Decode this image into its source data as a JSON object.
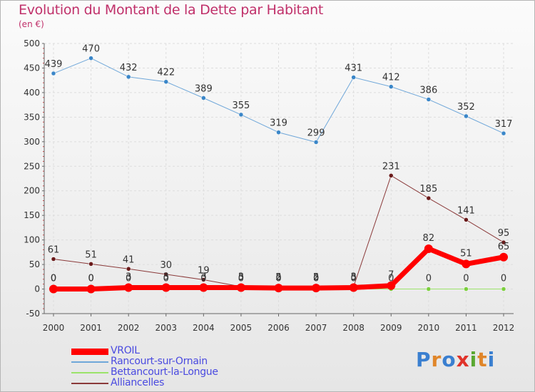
{
  "title": "Evolution du Montant de la Dette par Habitant",
  "unit_label": "(en €)",
  "logo": {
    "text": "Proxiti",
    "colors": [
      "#3a7fd0",
      "#e0862a",
      "#3a7fd0",
      "#e0332a",
      "#5aa832",
      "#e0862a",
      "#3a7fd0"
    ]
  },
  "chart_data": {
    "type": "line",
    "x": [
      "2000",
      "2001",
      "2002",
      "2003",
      "2004",
      "2005",
      "2006",
      "2007",
      "2008",
      "2009",
      "2010",
      "2011",
      "2012"
    ],
    "ylim": [
      -50,
      500
    ],
    "yticks": [
      "-50",
      "0",
      "50",
      "100",
      "150",
      "200",
      "250",
      "300",
      "350",
      "400",
      "450",
      "500"
    ],
    "grid": true,
    "legend_position": "bottom-left",
    "series": [
      {
        "name": "Rancourt-sur-Ornain",
        "color": "#6fa7d9",
        "marker": "#3a86c8",
        "line_width": 1,
        "values": [
          439,
          470,
          432,
          422,
          389,
          355,
          319,
          299,
          431,
          412,
          386,
          352,
          317
        ],
        "labels": [
          "439",
          "470",
          "432",
          "422",
          "389",
          "355",
          "319",
          "299",
          "431",
          "412",
          "386",
          "352",
          "317"
        ]
      },
      {
        "name": "Alliancelles",
        "color": "#8b3a3a",
        "marker": "#6a1a1a",
        "line_width": 1,
        "values": [
          61,
          51,
          41,
          30,
          19,
          5,
          5,
          5,
          5,
          231,
          185,
          141,
          95
        ],
        "labels": [
          "61",
          "51",
          "41",
          "30",
          "19",
          "5",
          "5",
          "5",
          "5",
          "231",
          "185",
          "141",
          "95"
        ]
      },
      {
        "name": "Bettancourt-la-Longue",
        "color": "#9be36a",
        "marker": "#7bcf3c",
        "line_width": 1,
        "values": [
          0,
          0,
          0,
          0,
          0,
          0,
          0,
          0,
          0,
          0,
          0,
          0,
          0
        ],
        "labels": [
          "0",
          "0",
          "0",
          "0",
          "0",
          "0",
          "0",
          "0",
          "0",
          "0",
          "0",
          "0",
          "0"
        ]
      },
      {
        "name": "VROIL",
        "color": "#ff0000",
        "marker": "#ff0000",
        "line_width": 7,
        "values": [
          0,
          0,
          3,
          3,
          3,
          3,
          2,
          2,
          3,
          7,
          82,
          51,
          65
        ],
        "labels": [
          "0",
          "0",
          "3",
          "3",
          "3",
          "3",
          "2",
          "2",
          "3",
          "7",
          "82",
          "51",
          "65"
        ]
      }
    ],
    "legend": [
      "VROIL",
      "Rancourt-sur-Ornain",
      "Bettancourt-la-Longue",
      "Alliancelles"
    ]
  }
}
